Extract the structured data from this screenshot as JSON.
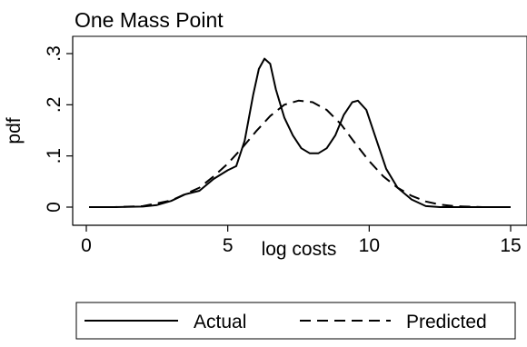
{
  "chart_data": {
    "type": "line",
    "title": "One Mass Point",
    "xlabel": "log costs",
    "ylabel": "pdf",
    "xlim": [
      0,
      15
    ],
    "ylim": [
      0,
      0.3
    ],
    "xticks": [
      0,
      5,
      10,
      15
    ],
    "yticks": [
      0,
      0.1,
      0.2,
      0.3
    ],
    "xtick_labels": [
      "0",
      "5",
      "10",
      "15"
    ],
    "ytick_labels": [
      "0",
      ".1",
      ".2",
      ".3"
    ],
    "grid": false,
    "legend_position": "bottom",
    "series": [
      {
        "name": "Actual",
        "style": "solid",
        "color": "#000000",
        "points": [
          [
            0.1,
            0.0
          ],
          [
            1.0,
            0.0
          ],
          [
            2.0,
            0.001
          ],
          [
            2.5,
            0.004
          ],
          [
            3.0,
            0.012
          ],
          [
            3.5,
            0.025
          ],
          [
            4.0,
            0.032
          ],
          [
            4.5,
            0.055
          ],
          [
            5.0,
            0.072
          ],
          [
            5.3,
            0.08
          ],
          [
            5.6,
            0.13
          ],
          [
            5.9,
            0.22
          ],
          [
            6.1,
            0.27
          ],
          [
            6.3,
            0.29
          ],
          [
            6.5,
            0.28
          ],
          [
            6.7,
            0.23
          ],
          [
            7.0,
            0.175
          ],
          [
            7.3,
            0.14
          ],
          [
            7.6,
            0.115
          ],
          [
            7.9,
            0.105
          ],
          [
            8.2,
            0.105
          ],
          [
            8.5,
            0.115
          ],
          [
            8.8,
            0.14
          ],
          [
            9.1,
            0.18
          ],
          [
            9.4,
            0.205
          ],
          [
            9.6,
            0.208
          ],
          [
            9.9,
            0.19
          ],
          [
            10.2,
            0.14
          ],
          [
            10.6,
            0.075
          ],
          [
            11.0,
            0.038
          ],
          [
            11.5,
            0.015
          ],
          [
            12.0,
            0.002
          ],
          [
            12.5,
            0.0
          ],
          [
            15.0,
            0.0
          ]
        ]
      },
      {
        "name": "Predicted",
        "style": "dashed",
        "color": "#000000",
        "points": [
          [
            0.1,
            0.0
          ],
          [
            1.0,
            0.0
          ],
          [
            2.0,
            0.002
          ],
          [
            3.0,
            0.013
          ],
          [
            4.0,
            0.038
          ],
          [
            4.5,
            0.06
          ],
          [
            5.0,
            0.085
          ],
          [
            5.5,
            0.115
          ],
          [
            6.0,
            0.148
          ],
          [
            6.5,
            0.178
          ],
          [
            7.0,
            0.2
          ],
          [
            7.5,
            0.208
          ],
          [
            8.0,
            0.205
          ],
          [
            8.5,
            0.19
          ],
          [
            9.0,
            0.162
          ],
          [
            9.5,
            0.125
          ],
          [
            10.0,
            0.09
          ],
          [
            10.5,
            0.06
          ],
          [
            11.0,
            0.038
          ],
          [
            11.5,
            0.022
          ],
          [
            12.0,
            0.011
          ],
          [
            12.5,
            0.005
          ],
          [
            13.0,
            0.002
          ],
          [
            14.0,
            0.0
          ],
          [
            15.0,
            0.0
          ]
        ]
      }
    ]
  }
}
